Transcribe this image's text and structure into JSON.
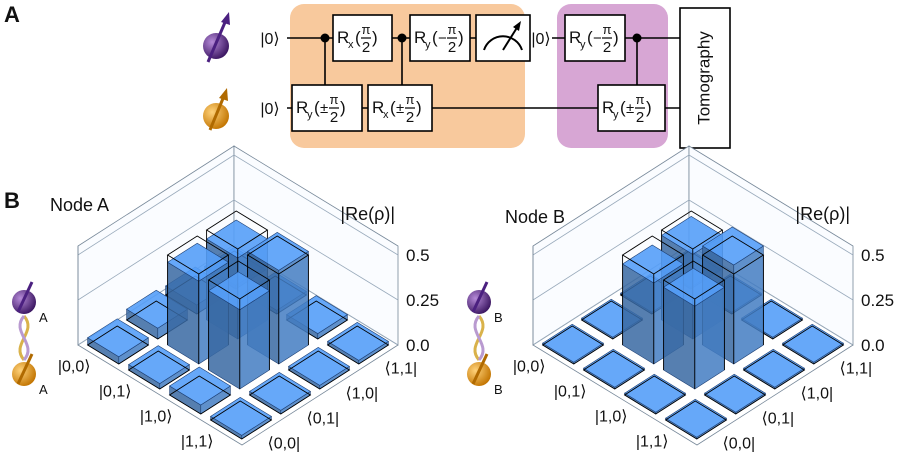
{
  "panel_a": {
    "label": "A",
    "kets": [
      "|0⟩",
      "|0⟩",
      "|0⟩"
    ],
    "gates": [
      {
        "base": "R",
        "sub": "x",
        "sign": "",
        "num": "π",
        "den": "2"
      },
      {
        "base": "R",
        "sub": "y",
        "sign": "−",
        "num": "π",
        "den": "2"
      },
      {
        "base": "R",
        "sub": "y",
        "sign": "±",
        "num": "π",
        "den": "2"
      },
      {
        "base": "R",
        "sub": "x",
        "sign": "±",
        "num": "π",
        "den": "2"
      },
      {
        "base": "R",
        "sub": "y",
        "sign": "−",
        "num": "π",
        "den": "2"
      },
      {
        "base": "R",
        "sub": "y",
        "sign": "±",
        "num": "π",
        "den": "2"
      }
    ],
    "tomography": "Tomography"
  },
  "panel_b": {
    "label": "B"
  },
  "chart_data": [
    {
      "type": "bar3d",
      "title": "Node A",
      "zlabel": "|Re(ρ)|",
      "atom_label": "A",
      "rows": [
        "|0,0⟩",
        "|0,1⟩",
        "|1,0⟩",
        "|1,1⟩"
      ],
      "columns": [
        "⟨0,0|",
        "⟨0,1|",
        "⟨1,0|",
        "⟨1,1|"
      ],
      "values": [
        [
          0.04,
          0.06,
          0.05,
          0.02
        ],
        [
          0.03,
          0.46,
          0.45,
          0.02
        ],
        [
          0.05,
          0.44,
          0.52,
          0.03
        ],
        [
          0.02,
          0.02,
          0.02,
          0.02
        ]
      ],
      "ideal": [
        [
          0,
          0,
          0,
          0
        ],
        [
          0,
          0.5,
          0.5,
          0
        ],
        [
          0,
          0.5,
          0.5,
          0
        ],
        [
          0,
          0,
          0,
          0
        ]
      ],
      "zlim": [
        0,
        0.55
      ],
      "zticks": [
        {
          "value": 0,
          "label": "0.0"
        },
        0.25,
        0.5
      ],
      "color": "#4a8ad8"
    },
    {
      "type": "bar3d",
      "title": "Node B",
      "zlabel": "|Re(ρ)|",
      "atom_label": "B",
      "rows": [
        "|0,0⟩",
        "|0,1⟩",
        "|1,0⟩",
        "|1,1⟩"
      ],
      "columns": [
        "⟨0,0|",
        "⟨0,1|",
        "⟨1,0|",
        "⟨1,1|"
      ],
      "values": [
        [
          0.01,
          0.01,
          0.01,
          0.01
        ],
        [
          0.01,
          0.45,
          0.47,
          0.01
        ],
        [
          0.01,
          0.46,
          0.55,
          0.01
        ],
        [
          0.01,
          0.01,
          0.01,
          0.01
        ]
      ],
      "ideal": [
        [
          0,
          0,
          0,
          0
        ],
        [
          0,
          0.5,
          0.5,
          0
        ],
        [
          0,
          0.5,
          0.5,
          0
        ],
        [
          0,
          0,
          0,
          0
        ]
      ],
      "zlim": [
        0,
        0.55
      ],
      "zticks": [
        {
          "value": 0,
          "label": "0.0"
        },
        0.25,
        0.5
      ],
      "color": "#4a8ad8"
    }
  ]
}
